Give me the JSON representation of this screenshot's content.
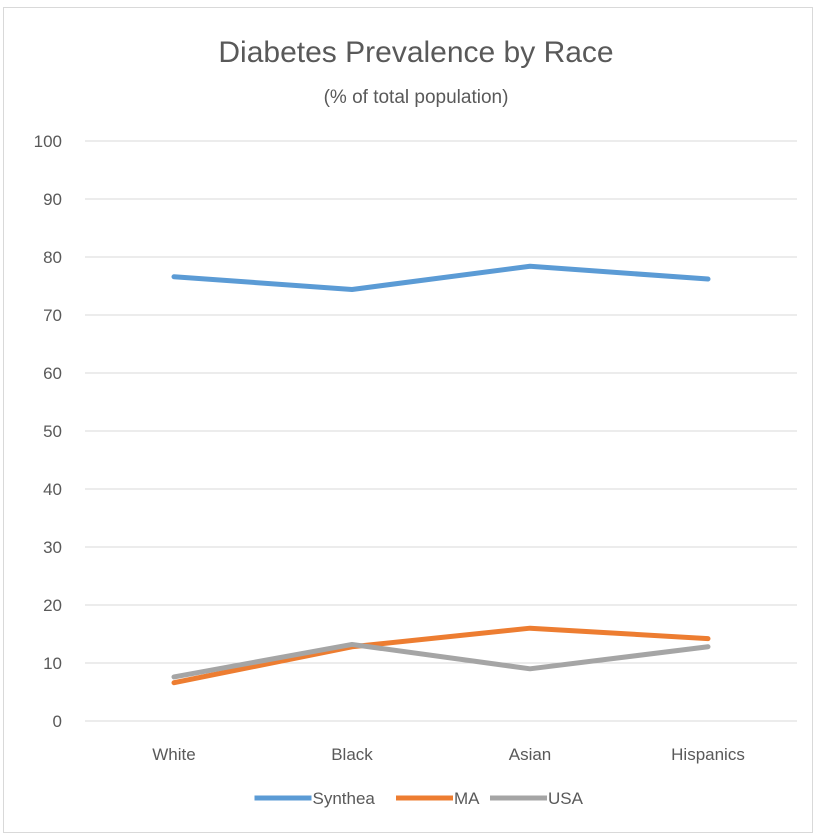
{
  "chart_data": {
    "type": "line",
    "title": "Diabetes Prevalence by Race",
    "subtitle": "(% of total population)",
    "categories": [
      "White",
      "Black",
      "Asian",
      "Hispanics"
    ],
    "ylim": [
      0,
      100
    ],
    "yticks": [
      0,
      10,
      20,
      30,
      40,
      50,
      60,
      70,
      80,
      90,
      100
    ],
    "grid": true,
    "legend_position": "bottom",
    "series": [
      {
        "name": "Synthea",
        "color": "#5b9bd5",
        "values": [
          76.6,
          74.4,
          78.4,
          76.2
        ]
      },
      {
        "name": "MA",
        "color": "#ed7d31",
        "values": [
          6.6,
          12.8,
          16.0,
          14.2
        ]
      },
      {
        "name": "USA",
        "color": "#a5a5a5",
        "values": [
          7.6,
          13.2,
          9.0,
          12.8
        ]
      }
    ]
  }
}
